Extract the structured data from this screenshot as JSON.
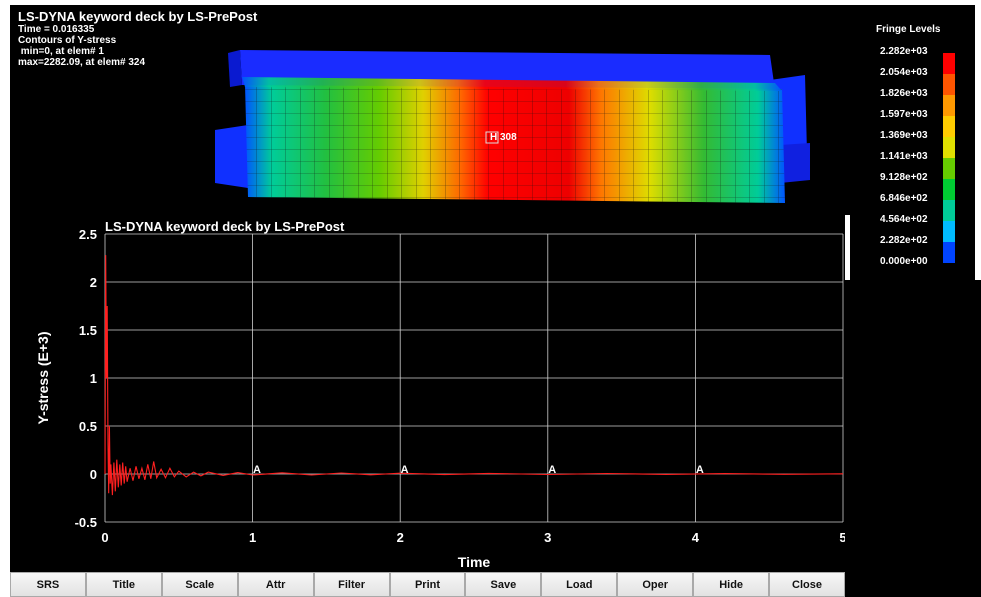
{
  "model_view": {
    "title": "LS-DYNA keyword deck by LS-PrePost",
    "info_lines": [
      "Time =    0.016335",
      "Contours of Y-stress",
      " min=0, at elem# 1",
      "max=2282.09, at elem# 324"
    ],
    "history_label": "H 308"
  },
  "fringe": {
    "title": "Fringe Levels",
    "levels": [
      "2.282e+03",
      "2.054e+03",
      "1.826e+03",
      "1.597e+03",
      "1.369e+03",
      "1.141e+03",
      "9.128e+02",
      "6.846e+02",
      "4.564e+02",
      "2.282e+02",
      "0.000e+00"
    ],
    "colors": [
      "#ff0000",
      "#ff5500",
      "#ff9900",
      "#ffcc00",
      "#e0e000",
      "#66cc00",
      "#00cc33",
      "#00cc99",
      "#00bbff",
      "#0044ff",
      "#0000ff"
    ]
  },
  "toolbar": {
    "buttons": [
      "SRS",
      "Title",
      "Scale",
      "Attr",
      "Filter",
      "Print",
      "Save",
      "Load",
      "Oper",
      "Hide",
      "Close"
    ]
  },
  "chart_data": {
    "type": "line",
    "title": "LS-DYNA keyword deck by LS-PrePost",
    "xlabel": "Time",
    "ylabel": "Y-stress (E+3)",
    "xlim": [
      0,
      5
    ],
    "ylim": [
      -0.5,
      2.5
    ],
    "xticks": [
      "0",
      "1",
      "2",
      "3",
      "4",
      "5"
    ],
    "yticks": [
      "-0.5",
      "0",
      "0.5",
      "1",
      "1.5",
      "2",
      "2.5"
    ],
    "grid": true,
    "line_color": "#ff2020",
    "marker_label": "A",
    "markers_x": [
      1.03,
      2.03,
      3.03,
      4.03
    ],
    "series": [
      {
        "x": [
          0,
          0.005,
          0.01,
          0.015,
          0.02,
          0.025,
          0.03,
          0.035,
          0.04,
          0.05,
          0.06,
          0.07,
          0.08,
          0.09,
          0.1,
          0.11,
          0.12,
          0.13,
          0.14,
          0.15,
          0.17,
          0.19,
          0.21,
          0.23,
          0.25,
          0.27,
          0.29,
          0.31,
          0.33,
          0.35,
          0.38,
          0.41,
          0.44,
          0.47,
          0.5,
          0.55,
          0.6,
          0.65,
          0.7,
          0.8,
          0.9,
          1.0,
          1.2,
          1.4,
          1.6,
          1.8,
          2.0,
          2.3,
          2.6,
          3.0,
          3.4,
          3.8,
          4.2,
          4.6,
          5.0
        ],
        "values": [
          0,
          2.28,
          1.0,
          1.75,
          0.3,
          -0.2,
          0.5,
          -0.1,
          0.1,
          -0.22,
          0.12,
          -0.18,
          0.15,
          -0.14,
          0.1,
          -0.12,
          0.12,
          -0.1,
          0.08,
          -0.08,
          0.06,
          -0.07,
          0.08,
          -0.05,
          0.06,
          -0.06,
          0.1,
          -0.05,
          0.13,
          -0.04,
          0.05,
          -0.04,
          0.06,
          -0.03,
          0.03,
          -0.03,
          0.02,
          -0.02,
          0.02,
          -0.015,
          0.015,
          -0.01,
          0.012,
          -0.01,
          0.01,
          -0.008,
          0.008,
          -0.006,
          0.006,
          -0.005,
          0.005,
          -0.004,
          0.004,
          -0.003,
          0.002
        ]
      }
    ]
  }
}
